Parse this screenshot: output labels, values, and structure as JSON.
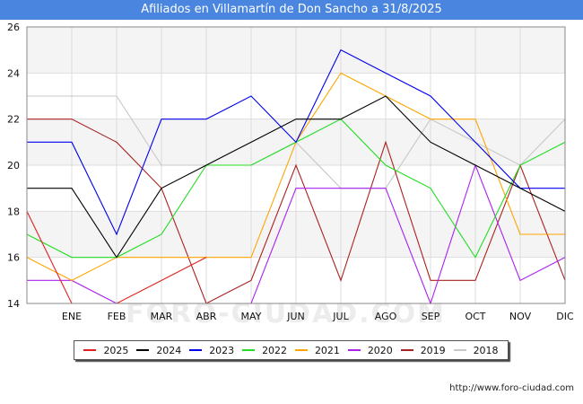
{
  "title": "Afiliados en Villamartín de Don Sancho a 31/8/2025",
  "watermark": "FORO-CIUDAD.COM",
  "footer_url": "http://www.foro-ciudad.com",
  "chart_data": {
    "type": "line",
    "categories": [
      "",
      "ENE",
      "FEB",
      "MAR",
      "ABR",
      "MAY",
      "JUN",
      "JUL",
      "AGO",
      "SEP",
      "OCT",
      "NOV",
      "DIC"
    ],
    "ylim": [
      14,
      26
    ],
    "yticks": [
      14,
      16,
      18,
      20,
      22,
      24,
      26
    ],
    "grid": true,
    "legend_position": "bottom",
    "series": [
      {
        "name": "2025",
        "color": "#e02020",
        "values": [
          18,
          14,
          14,
          15,
          16,
          null,
          null,
          null,
          null,
          null,
          null,
          null,
          null
        ]
      },
      {
        "name": "2024",
        "color": "#000000",
        "values": [
          19,
          19,
          16,
          19,
          20,
          21,
          22,
          22,
          23,
          21,
          20,
          19,
          18
        ]
      },
      {
        "name": "2023",
        "color": "#0000ee",
        "values": [
          21,
          21,
          17,
          22,
          22,
          23,
          21,
          25,
          24,
          23,
          21,
          19,
          19
        ]
      },
      {
        "name": "2022",
        "color": "#22dd22",
        "values": [
          17,
          16,
          16,
          17,
          20,
          20,
          21,
          22,
          20,
          19,
          16,
          20,
          21
        ]
      },
      {
        "name": "2021",
        "color": "#ffa500",
        "values": [
          16,
          15,
          16,
          16,
          16,
          16,
          21,
          24,
          23,
          22,
          22,
          17,
          17
        ]
      },
      {
        "name": "2020",
        "color": "#aa22ee",
        "values": [
          15,
          15,
          14,
          14,
          14,
          14,
          19,
          19,
          19,
          14,
          20,
          15,
          16
        ]
      },
      {
        "name": "2019",
        "color": "#aa2222",
        "values": [
          22,
          22,
          21,
          19,
          14,
          15,
          20,
          15,
          21,
          15,
          15,
          20,
          15
        ]
      },
      {
        "name": "2018",
        "color": "#c8c8c8",
        "values": [
          23,
          23,
          23,
          20,
          20,
          20,
          21,
          19,
          19,
          22,
          21,
          20,
          22
        ]
      }
    ]
  }
}
